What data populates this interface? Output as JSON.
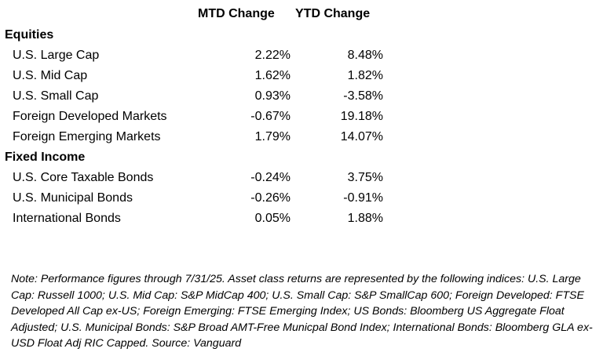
{
  "headers": {
    "mtd": "MTD Change",
    "ytd": "YTD Change"
  },
  "sections": [
    {
      "title": "Equities",
      "rows": [
        {
          "label": "U.S. Large Cap",
          "mtd": "2.22%",
          "ytd": "8.48%"
        },
        {
          "label": "U.S. Mid Cap",
          "mtd": "1.62%",
          "ytd": "1.82%"
        },
        {
          "label": "U.S. Small Cap",
          "mtd": "0.93%",
          "ytd": "-3.58%"
        },
        {
          "label": "Foreign Developed Markets",
          "mtd": "-0.67%",
          "ytd": "19.18%"
        },
        {
          "label": "Foreign Emerging Markets",
          "mtd": "1.79%",
          "ytd": "14.07%"
        }
      ]
    },
    {
      "title": "Fixed Income",
      "rows": [
        {
          "label": "U.S. Core Taxable Bonds",
          "mtd": "-0.24%",
          "ytd": "3.75%"
        },
        {
          "label": "U.S. Municipal Bonds",
          "mtd": "-0.26%",
          "ytd": "-0.91%"
        },
        {
          "label": "International Bonds",
          "mtd": "0.05%",
          "ytd": "1.88%"
        }
      ]
    }
  ],
  "note": "Note: Performance figures through 7/31/25. Asset class returns are represented by the following indices: U.S. Large Cap: Russell 1000; U.S. Mid Cap: S&P MidCap 400; U.S. Small Cap: S&P SmallCap 600; Foreign Developed: FTSE Developed All Cap ex-US; Foreign Emerging: FTSE Emerging Index; US Bonds: Bloomberg US Aggregate Float Adjusted; U.S. Municipal Bonds: S&P Broad AMT-Free Municpal Bond Index; International Bonds: Bloomberg GLA ex-USD Float Adj RIC Capped. Source: Vanguard"
}
